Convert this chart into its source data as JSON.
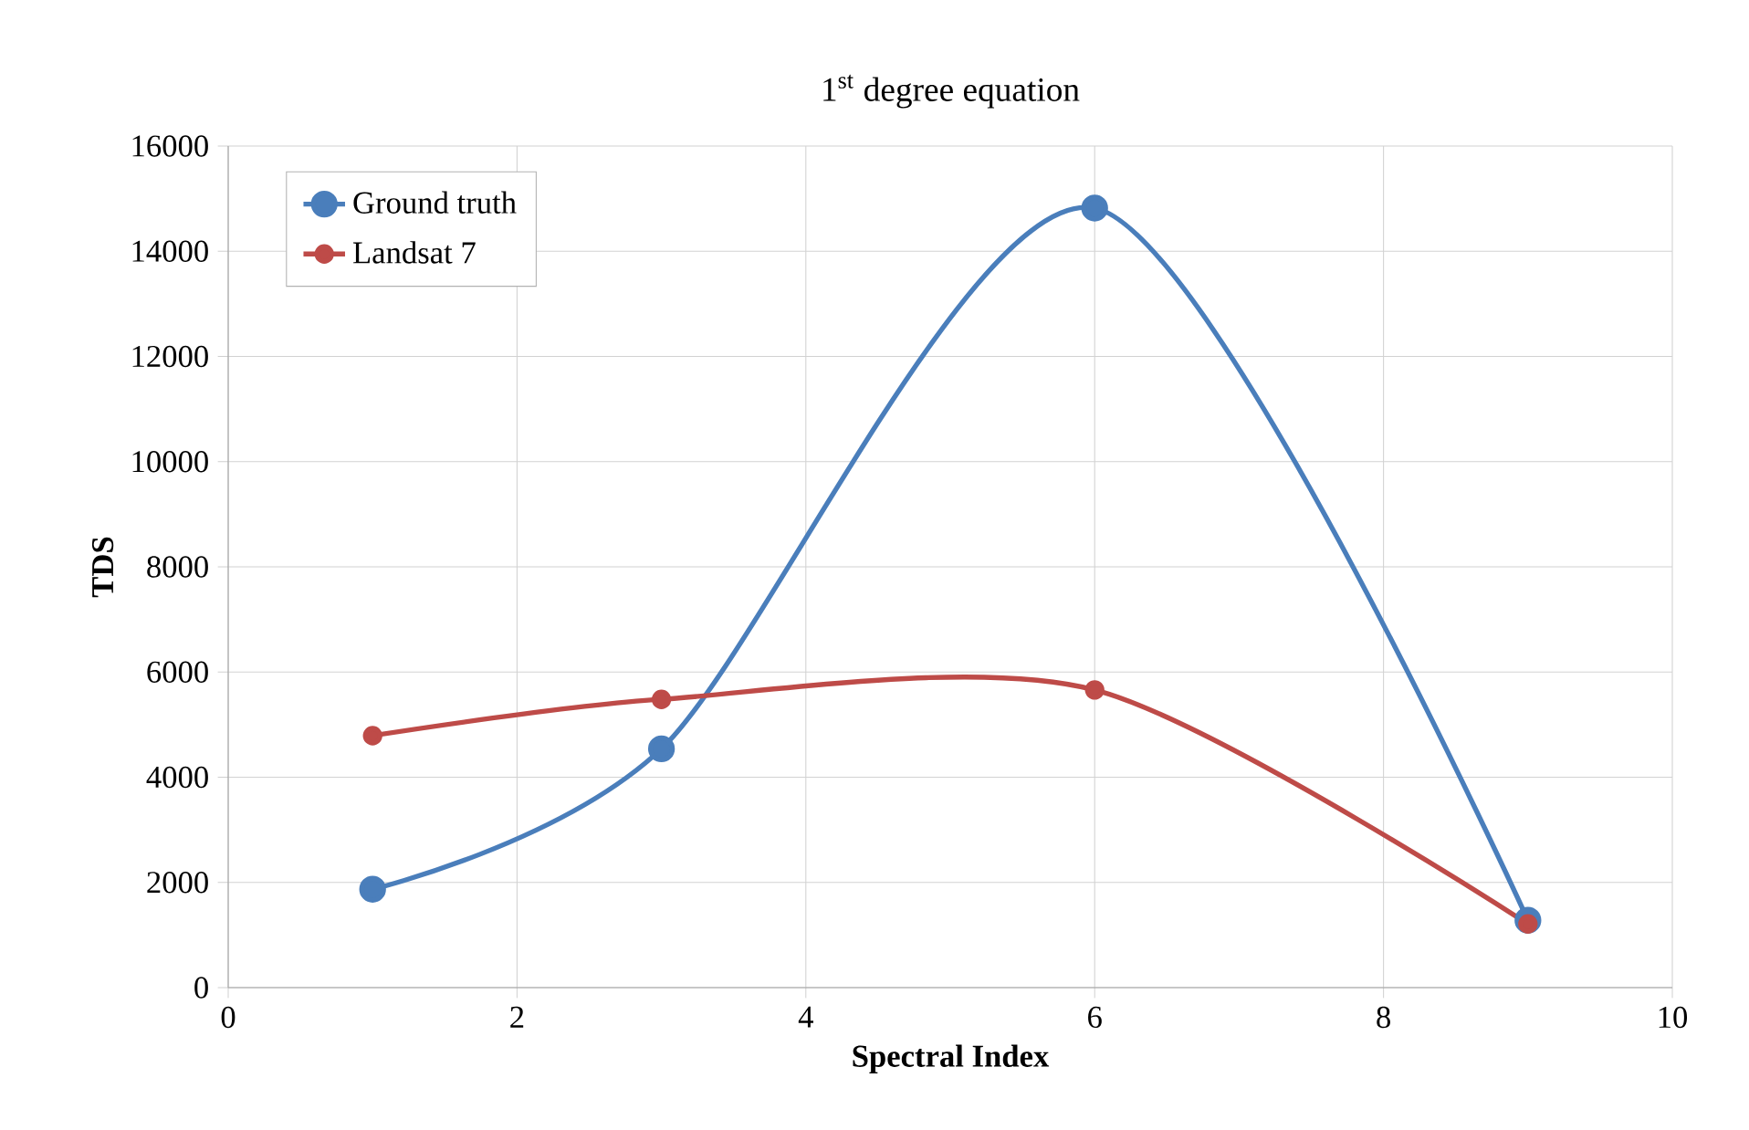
{
  "chart_data": {
    "type": "line",
    "title": "1$^{st}$ degree equation",
    "xlabel": "Spectral Index",
    "ylabel": "TDS",
    "x": [
      1,
      3,
      6,
      9
    ],
    "series": [
      {
        "name": "Ground truth",
        "color": "#4a7ebb",
        "values": [
          1870,
          4540,
          14820,
          1280
        ]
      },
      {
        "name": "Landsat 7",
        "color": "#be4b48",
        "values": [
          4790,
          5480,
          5660,
          1210
        ]
      }
    ],
    "xlim": [
      0,
      10
    ],
    "ylim": [
      0,
      16000
    ],
    "xticks": [
      0,
      2,
      4,
      6,
      8,
      10
    ],
    "yticks": [
      0,
      2000,
      4000,
      6000,
      8000,
      10000,
      12000,
      14000,
      16000
    ],
    "grid": true,
    "legend": "top left",
    "marker": "circle"
  }
}
